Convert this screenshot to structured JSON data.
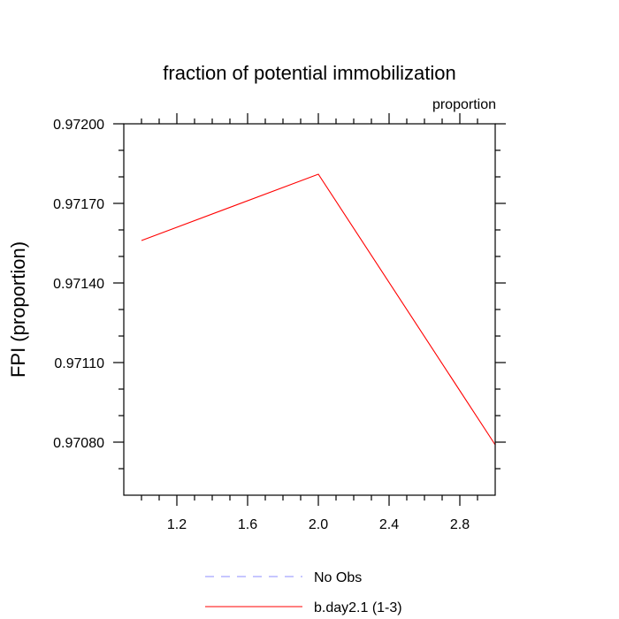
{
  "chart_data": {
    "type": "line",
    "title": "fraction of potential immobilization",
    "units_label": "proportion",
    "xlabel": "",
    "ylabel": "FPI  (proportion)",
    "xlim": [
      0.9,
      3.0
    ],
    "ylim": [
      0.9706,
      0.972
    ],
    "x_ticks": [
      {
        "value": 1.2,
        "label": "1.2"
      },
      {
        "value": 1.6,
        "label": "1.6"
      },
      {
        "value": 2.0,
        "label": "2.0"
      },
      {
        "value": 2.4,
        "label": "2.4"
      },
      {
        "value": 2.8,
        "label": "2.8"
      }
    ],
    "y_ticks": [
      {
        "value": 0.9708,
        "label": "0.97080"
      },
      {
        "value": 0.9711,
        "label": "0.97110"
      },
      {
        "value": 0.9714,
        "label": "0.97140"
      },
      {
        "value": 0.9717,
        "label": "0.97170"
      },
      {
        "value": 0.972,
        "label": "0.97200"
      }
    ],
    "x_minor_step": 0.1,
    "y_minor_step": 0.0001,
    "series": [
      {
        "name": "b.day2.1 (1-3)",
        "color": "#ff0000",
        "dash": "solid",
        "x": [
          1.0,
          2.0,
          3.0
        ],
        "values": [
          0.97156,
          0.97181,
          0.97079
        ]
      }
    ],
    "legend": {
      "position": "bottom",
      "entries": [
        {
          "label": "No Obs",
          "color": "#8c8cff",
          "dash": "dashed"
        },
        {
          "label": "b.day2.1 (1-3)",
          "color": "#ff0000",
          "dash": "solid"
        }
      ]
    }
  }
}
